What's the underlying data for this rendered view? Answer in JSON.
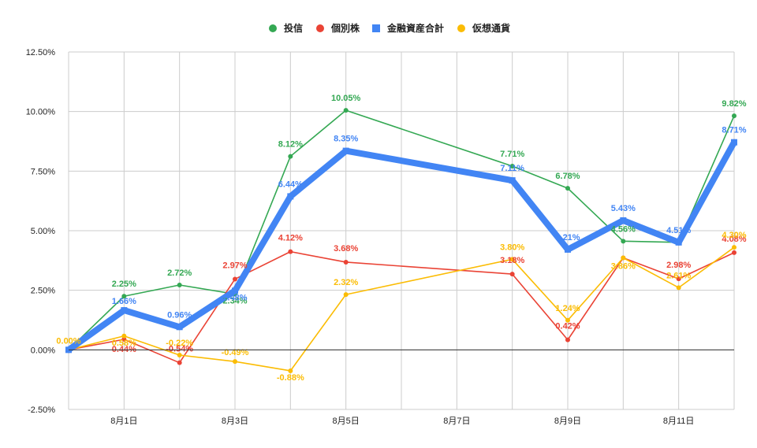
{
  "chart_data": {
    "type": "line",
    "title": "",
    "xlabel": "",
    "ylabel": "",
    "ylim": [
      -2.5,
      12.5
    ],
    "y_ticks": [
      -2.5,
      0,
      2.5,
      5,
      7.5,
      10,
      12.5
    ],
    "y_tick_labels": [
      "-2.50%",
      "0.00%",
      "2.50%",
      "5.00%",
      "7.50%",
      "10.00%",
      "12.50%"
    ],
    "x_ticks": [
      1,
      3,
      5,
      7,
      9,
      11
    ],
    "x_tick_labels": [
      "8月1日",
      "8月3日",
      "8月5日",
      "8月7日",
      "8月9日",
      "8月11日"
    ],
    "x_range": [
      0,
      12
    ],
    "legend_position": "top",
    "grid": true,
    "series": [
      {
        "name": "投信",
        "color": "#34a853",
        "marker": "circle",
        "x": [
          0,
          1,
          2,
          3,
          4,
          5,
          8,
          9,
          10,
          11,
          12
        ],
        "values": [
          0,
          2.25,
          2.72,
          2.34,
          8.12,
          10.05,
          7.71,
          6.78,
          4.56,
          4.51,
          9.82
        ],
        "labels": [
          "",
          "2.25%",
          "2.72%",
          "2.34%",
          "8.12%",
          "10.05%",
          "7.71%",
          "6.78%",
          "4.56%",
          "",
          "9.82%"
        ]
      },
      {
        "name": "個別株",
        "color": "#ea4335",
        "marker": "circle",
        "x": [
          0,
          1,
          2,
          3,
          4,
          5,
          8,
          9,
          10,
          11,
          12
        ],
        "values": [
          0,
          0.44,
          -0.54,
          2.97,
          4.12,
          3.68,
          3.18,
          0.42,
          3.86,
          2.98,
          4.08
        ],
        "labels": [
          "",
          "0.44%",
          "-0.54%",
          "2.97%",
          "4.12%",
          "3.68%",
          "3.18%",
          "0.42%",
          "",
          "2.98%",
          "4.08%"
        ]
      },
      {
        "name": "金融資産合計",
        "color": "#4285f4",
        "marker": "square",
        "x": [
          0,
          1,
          2,
          3,
          4,
          5,
          8,
          9,
          10,
          11,
          12
        ],
        "values": [
          0,
          1.66,
          0.96,
          2.48,
          6.44,
          8.35,
          7.11,
          4.21,
          5.43,
          4.51,
          8.71
        ],
        "labels": [
          "",
          "1.66%",
          "0.96%",
          "2.48%",
          "6.44%",
          "8.35%",
          "7.11%",
          "4.21%",
          "5.43%",
          "4.51%",
          "8.71%"
        ]
      },
      {
        "name": "仮想通貨",
        "color": "#fbbc04",
        "marker": "circle",
        "x": [
          0,
          1,
          2,
          3,
          4,
          5,
          8,
          9,
          10,
          11,
          12
        ],
        "values": [
          0,
          0.58,
          -0.22,
          -0.49,
          -0.88,
          2.32,
          3.8,
          1.24,
          3.86,
          2.61,
          4.3
        ],
        "labels": [
          "0.00%",
          "0.58%",
          "-0.22%",
          "-0.49%",
          "-0.88%",
          "2.32%",
          "3.80%",
          "1.24%",
          "3.86%",
          "2.61%",
          "4.30%"
        ]
      }
    ]
  }
}
